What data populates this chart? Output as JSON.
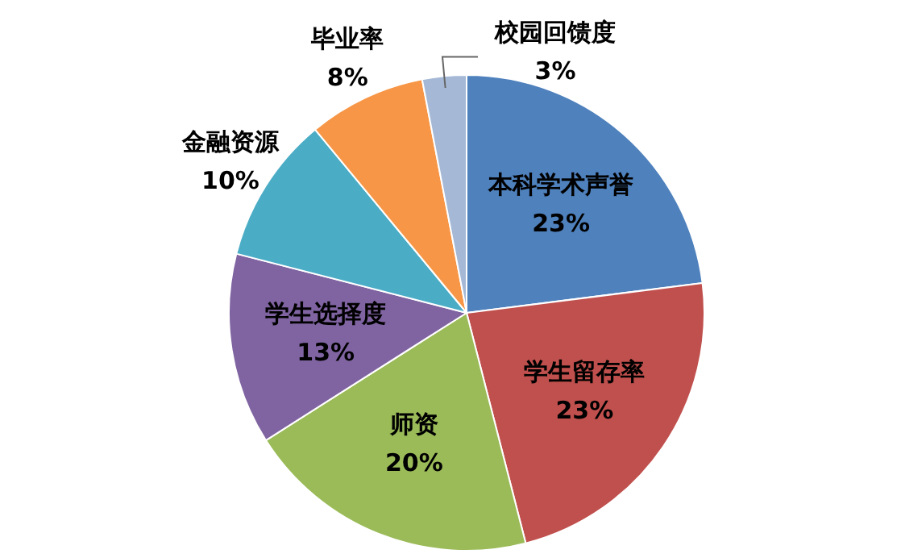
{
  "chart_data": {
    "type": "pie",
    "categories": [
      "本科学术声誉",
      "学生留存率",
      "师资",
      "学生选择度",
      "金融资源",
      "毕业率",
      "校园回馈度"
    ],
    "values": [
      23,
      23,
      20,
      13,
      10,
      8,
      3
    ],
    "value_labels": [
      "23%",
      "23%",
      "20%",
      "13%",
      "10%",
      "8%",
      "3%"
    ],
    "colors": [
      "#4f81bd",
      "#c0504d",
      "#9bbb59",
      "#8064a2",
      "#4bacc6",
      "#f79646",
      "#a5b9d6"
    ],
    "legend": false
  }
}
